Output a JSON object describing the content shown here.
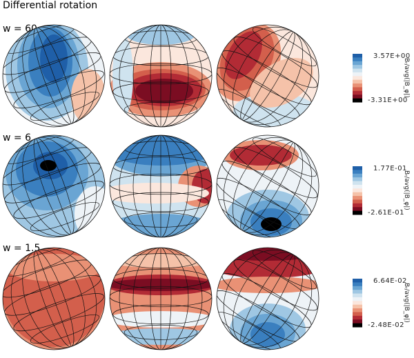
{
  "title": "Differential rotation",
  "colorbar_colors": [
    "#1f5fa8",
    "#3a7fbf",
    "#6aa5d3",
    "#9fc7e3",
    "#cfe3ef",
    "#eef3f7",
    "#fbe7dd",
    "#f5c2a9",
    "#e99175",
    "#d35f4c",
    "#b22b35",
    "#7b0d22",
    "#000000"
  ],
  "rows": [
    {
      "label": "w = 60",
      "cb_max": "3.57E+00",
      "cb_min": "-3.31E+00",
      "cb_label": "Bᵣ/avg(|B_φ|)"
    },
    {
      "label": "w = 6",
      "cb_max": "1.77E-01",
      "cb_min": "-2.61E-01",
      "cb_label": "Bᵣ/avg(|B_φ|)"
    },
    {
      "label": "w = 1.5",
      "cb_max": "6.64E-02",
      "cb_min": "-2.48E-02",
      "cb_label": "Bᵣ/avg(|B_φ|)"
    }
  ]
}
